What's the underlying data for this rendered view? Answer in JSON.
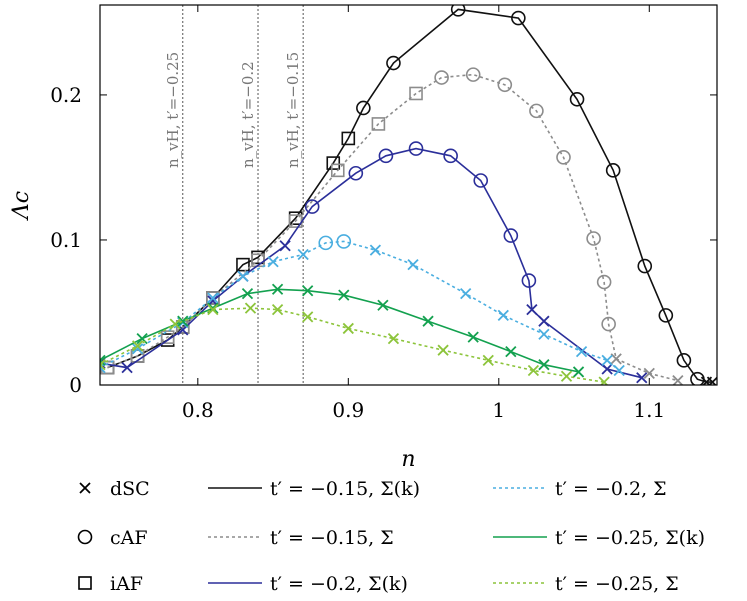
{
  "chart_data": {
    "type": "line",
    "xlabel": "n",
    "ylabel": "Λc",
    "xlim": [
      0.735,
      1.145
    ],
    "ylim": [
      0,
      0.262
    ],
    "xticks": [
      0.8,
      0.9,
      1.0,
      1.1
    ],
    "xtick_labels": [
      "0.8",
      "0.9",
      "1",
      "1.1"
    ],
    "yticks": [
      0,
      0.1,
      0.2
    ],
    "ytick_labels": [
      "0",
      "0.1",
      "0.2"
    ],
    "vlines": [
      {
        "x": 0.79,
        "label": "n_vH, t′=−0.25"
      },
      {
        "x": 0.84,
        "label": "n_vH, t′=−0.2"
      },
      {
        "x": 0.87,
        "label": "n_vH, t′=−0.15"
      }
    ],
    "series": [
      {
        "name": "t′ = −0.15, Σ(k)",
        "color": "#111111",
        "dash": "solid",
        "points": [
          [
            0.74,
            0.012,
            "iAF"
          ],
          [
            0.76,
            0.02,
            "iAF"
          ],
          [
            0.78,
            0.031,
            "iAF"
          ],
          [
            0.79,
            0.04,
            "iAF"
          ],
          [
            0.81,
            0.06,
            "iAF"
          ],
          [
            0.83,
            0.083,
            "iAF"
          ],
          [
            0.84,
            0.088,
            "iAF"
          ],
          [
            0.865,
            0.115,
            "iAF"
          ],
          [
            0.89,
            0.153,
            "iAF"
          ],
          [
            0.9,
            0.17,
            "iAF"
          ],
          [
            0.91,
            0.191,
            "cAF"
          ],
          [
            0.93,
            0.222,
            "cAF"
          ],
          [
            0.973,
            0.259,
            "cAF"
          ],
          [
            1.013,
            0.253,
            "cAF"
          ],
          [
            1.052,
            0.197,
            "cAF"
          ],
          [
            1.076,
            0.148,
            "cAF"
          ],
          [
            1.097,
            0.082,
            "cAF"
          ],
          [
            1.111,
            0.048,
            "cAF"
          ],
          [
            1.123,
            0.017,
            "cAF"
          ],
          [
            1.132,
            0.004,
            "cAF"
          ],
          [
            1.138,
            0.002,
            "dSC"
          ],
          [
            1.142,
            0.002,
            "dSC"
          ]
        ]
      },
      {
        "name": "t′ = −0.15, Σ",
        "color": "#8c8c8c",
        "dash": "dotted",
        "points": [
          [
            0.74,
            0.012,
            "iAF"
          ],
          [
            0.76,
            0.02,
            "iAF"
          ],
          [
            0.78,
            0.033,
            "iAF"
          ],
          [
            0.79,
            0.04,
            "iAF"
          ],
          [
            0.81,
            0.06,
            "iAF"
          ],
          [
            0.84,
            0.086,
            "iAF"
          ],
          [
            0.865,
            0.113,
            "iAF"
          ],
          [
            0.893,
            0.148,
            "iAF"
          ],
          [
            0.92,
            0.18,
            "iAF"
          ],
          [
            0.945,
            0.201,
            "iAF"
          ],
          [
            0.962,
            0.212,
            "cAF"
          ],
          [
            0.983,
            0.214,
            "cAF"
          ],
          [
            1.004,
            0.207,
            "cAF"
          ],
          [
            1.025,
            0.189,
            "cAF"
          ],
          [
            1.043,
            0.157,
            "cAF"
          ],
          [
            1.063,
            0.101,
            "cAF"
          ],
          [
            1.07,
            0.071,
            "cAF"
          ],
          [
            1.073,
            0.042,
            "cAF"
          ],
          [
            1.078,
            0.018,
            "dSC"
          ],
          [
            1.1,
            0.008,
            "dSC"
          ],
          [
            1.119,
            0.003,
            "dSC"
          ]
        ]
      },
      {
        "name": "t′ = −0.2, Σ(k)",
        "color": "#2b2f9a",
        "dash": "solid",
        "points": [
          [
            0.735,
            0.015,
            "dSC"
          ],
          [
            0.753,
            0.012,
            "dSC"
          ],
          [
            0.79,
            0.038,
            "dSC"
          ],
          [
            0.81,
            0.058,
            "dSC"
          ],
          [
            0.83,
            0.075,
            "dSC"
          ],
          [
            0.858,
            0.096,
            "dSC"
          ],
          [
            0.876,
            0.123,
            "cAF"
          ],
          [
            0.905,
            0.146,
            "cAF"
          ],
          [
            0.925,
            0.158,
            "cAF"
          ],
          [
            0.945,
            0.163,
            "cAF"
          ],
          [
            0.968,
            0.158,
            "cAF"
          ],
          [
            0.988,
            0.141,
            "cAF"
          ],
          [
            1.008,
            0.103,
            "cAF"
          ],
          [
            1.02,
            0.072,
            "cAF"
          ],
          [
            1.022,
            0.052,
            "dSC"
          ],
          [
            1.03,
            0.044,
            "dSC"
          ],
          [
            1.072,
            0.011,
            "dSC"
          ],
          [
            1.095,
            0.005,
            "dSC"
          ]
        ]
      },
      {
        "name": "t′ = −0.2, Σ",
        "color": "#4aaee0",
        "dash": "dotted",
        "points": [
          [
            0.735,
            0.012,
            "dSC"
          ],
          [
            0.76,
            0.025,
            "dSC"
          ],
          [
            0.79,
            0.043,
            "dSC"
          ],
          [
            0.81,
            0.06,
            "dSC"
          ],
          [
            0.83,
            0.075,
            "dSC"
          ],
          [
            0.85,
            0.085,
            "dSC"
          ],
          [
            0.87,
            0.09,
            "dSC"
          ],
          [
            0.885,
            0.098,
            "cAF"
          ],
          [
            0.897,
            0.099,
            "cAF"
          ],
          [
            0.918,
            0.093,
            "dSC"
          ],
          [
            0.943,
            0.083,
            "dSC"
          ],
          [
            0.978,
            0.063,
            "dSC"
          ],
          [
            1.003,
            0.048,
            "dSC"
          ],
          [
            1.03,
            0.035,
            "dSC"
          ],
          [
            1.055,
            0.023,
            "dSC"
          ],
          [
            1.072,
            0.017,
            "dSC"
          ],
          [
            1.08,
            0.01,
            "dSC"
          ]
        ]
      },
      {
        "name": "t′ = −0.25, Σ(k)",
        "color": "#13a14f",
        "dash": "solid",
        "points": [
          [
            0.735,
            0.017,
            "dSC"
          ],
          [
            0.763,
            0.032,
            "dSC"
          ],
          [
            0.79,
            0.044,
            "dSC"
          ],
          [
            0.81,
            0.053,
            "dSC"
          ],
          [
            0.833,
            0.063,
            "dSC"
          ],
          [
            0.853,
            0.066,
            "dSC"
          ],
          [
            0.873,
            0.065,
            "dSC"
          ],
          [
            0.897,
            0.062,
            "dSC"
          ],
          [
            0.923,
            0.055,
            "dSC"
          ],
          [
            0.953,
            0.044,
            "dSC"
          ],
          [
            0.983,
            0.033,
            "dSC"
          ],
          [
            1.008,
            0.023,
            "dSC"
          ],
          [
            1.03,
            0.014,
            "dSC"
          ],
          [
            1.053,
            0.009,
            "dSC"
          ]
        ]
      },
      {
        "name": "t′ = −0.25, Σ",
        "color": "#8cc43a",
        "dash": "dotted",
        "points": [
          [
            0.735,
            0.014,
            "dSC"
          ],
          [
            0.76,
            0.027,
            "dSC"
          ],
          [
            0.785,
            0.042,
            "dSC"
          ],
          [
            0.81,
            0.052,
            "dSC"
          ],
          [
            0.835,
            0.053,
            "dSC"
          ],
          [
            0.853,
            0.052,
            "dSC"
          ],
          [
            0.873,
            0.047,
            "dSC"
          ],
          [
            0.9,
            0.039,
            "dSC"
          ],
          [
            0.93,
            0.032,
            "dSC"
          ],
          [
            0.963,
            0.024,
            "dSC"
          ],
          [
            0.993,
            0.017,
            "dSC"
          ],
          [
            1.023,
            0.01,
            "dSC"
          ],
          [
            1.045,
            0.006,
            "dSC"
          ],
          [
            1.07,
            0.002,
            "dSC"
          ]
        ]
      }
    ],
    "marker_legend": [
      {
        "symbol": "dSC",
        "label": "dSC"
      },
      {
        "symbol": "cAF",
        "label": "cAF"
      },
      {
        "symbol": "iAF",
        "label": "iAF"
      }
    ],
    "line_legend_col1": [
      0,
      1,
      2
    ],
    "line_legend_col2": [
      3,
      4,
      5
    ]
  }
}
